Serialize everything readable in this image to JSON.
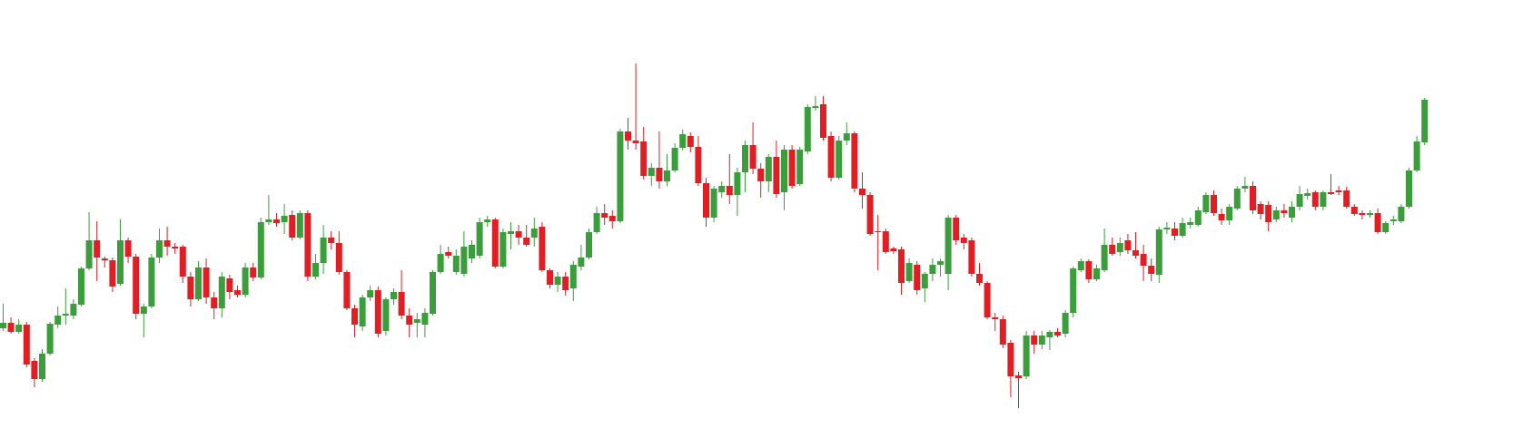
{
  "chart_data": {
    "type": "candlestick",
    "up_color": "#3a9e3a",
    "down_color": "#e01e24",
    "ylim": [
      0,
      483
    ],
    "ohlc": [
      [
        121,
        148,
        118,
        127
      ],
      [
        127,
        133,
        115,
        117
      ],
      [
        117,
        131,
        115,
        125
      ],
      [
        125,
        128,
        78,
        81
      ],
      [
        85,
        88,
        56,
        65
      ],
      [
        65,
        98,
        62,
        93
      ],
      [
        93,
        128,
        91,
        126
      ],
      [
        125,
        145,
        121,
        135
      ],
      [
        135,
        165,
        125,
        137
      ],
      [
        135,
        153,
        131,
        148
      ],
      [
        147,
        189,
        145,
        187
      ],
      [
        187,
        249,
        185,
        218
      ],
      [
        218,
        239,
        173,
        199
      ],
      [
        198,
        200,
        188,
        196
      ],
      [
        196,
        199,
        161,
        167
      ],
      [
        170,
        241,
        168,
        218
      ],
      [
        218,
        221,
        193,
        200
      ],
      [
        200,
        203,
        131,
        137
      ],
      [
        137,
        148,
        111,
        145
      ],
      [
        145,
        203,
        143,
        199
      ],
      [
        199,
        231,
        193,
        218
      ],
      [
        218,
        233,
        201,
        211
      ],
      [
        211,
        215,
        203,
        209
      ],
      [
        211,
        213,
        171,
        178
      ],
      [
        178,
        183,
        145,
        153
      ],
      [
        153,
        195,
        151,
        188
      ],
      [
        188,
        198,
        148,
        155
      ],
      [
        155,
        161,
        131,
        143
      ],
      [
        143,
        183,
        133,
        178
      ],
      [
        176,
        180,
        153,
        161
      ],
      [
        163,
        168,
        155,
        158
      ],
      [
        158,
        193,
        155,
        188
      ],
      [
        188,
        193,
        173,
        177
      ],
      [
        177,
        243,
        175,
        238
      ],
      [
        238,
        268,
        235,
        241
      ],
      [
        241,
        248,
        233,
        237
      ],
      [
        238,
        258,
        225,
        245
      ],
      [
        246,
        251,
        218,
        221
      ],
      [
        221,
        251,
        219,
        248
      ],
      [
        248,
        251,
        173,
        178
      ],
      [
        178,
        203,
        175,
        193
      ],
      [
        193,
        235,
        181,
        221
      ],
      [
        221,
        228,
        208,
        215
      ],
      [
        215,
        228,
        180,
        183
      ],
      [
        183,
        185,
        141,
        143
      ],
      [
        143,
        147,
        111,
        125
      ],
      [
        123,
        158,
        118,
        155
      ],
      [
        155,
        168,
        151,
        163
      ],
      [
        163,
        167,
        111,
        115
      ],
      [
        118,
        155,
        113,
        153
      ],
      [
        153,
        165,
        147,
        161
      ],
      [
        161,
        185,
        131,
        135
      ],
      [
        135,
        143,
        111,
        125
      ],
      [
        127,
        138,
        111,
        131
      ],
      [
        125,
        143,
        111,
        138
      ],
      [
        137,
        185,
        135,
        183
      ],
      [
        183,
        213,
        181,
        203
      ],
      [
        205,
        211,
        198,
        201
      ],
      [
        183,
        208,
        180,
        201
      ],
      [
        181,
        228,
        178,
        211
      ],
      [
        198,
        218,
        193,
        213
      ],
      [
        201,
        243,
        198,
        238
      ],
      [
        238,
        245,
        233,
        241
      ],
      [
        241,
        243,
        187,
        189
      ],
      [
        189,
        231,
        187,
        227
      ],
      [
        225,
        238,
        208,
        228
      ],
      [
        228,
        235,
        213,
        221
      ],
      [
        221,
        235,
        211,
        213
      ],
      [
        221,
        243,
        211,
        231
      ],
      [
        233,
        238,
        183,
        185
      ],
      [
        185,
        187,
        165,
        169
      ],
      [
        169,
        183,
        161,
        178
      ],
      [
        178,
        183,
        157,
        163
      ],
      [
        165,
        195,
        151,
        191
      ],
      [
        189,
        213,
        185,
        199
      ],
      [
        199,
        231,
        197,
        227
      ],
      [
        227,
        255,
        225,
        248
      ],
      [
        248,
        258,
        235,
        243
      ],
      [
        245,
        251,
        231,
        239
      ],
      [
        239,
        341,
        237,
        338
      ],
      [
        338,
        353,
        318,
        328
      ],
      [
        328,
        413,
        318,
        325
      ],
      [
        327,
        343,
        285,
        289
      ],
      [
        289,
        303,
        278,
        298
      ],
      [
        298,
        338,
        275,
        283
      ],
      [
        283,
        313,
        278,
        295
      ],
      [
        295,
        325,
        293,
        320
      ],
      [
        320,
        340,
        317,
        335
      ],
      [
        333,
        337,
        315,
        321
      ],
      [
        321,
        333,
        278,
        281
      ],
      [
        281,
        287,
        233,
        243
      ],
      [
        243,
        278,
        238,
        275
      ],
      [
        271,
        283,
        265,
        278
      ],
      [
        278,
        313,
        258,
        268
      ],
      [
        268,
        298,
        245,
        293
      ],
      [
        293,
        328,
        271,
        323
      ],
      [
        323,
        348,
        291,
        297
      ],
      [
        297,
        303,
        265,
        283
      ],
      [
        283,
        313,
        271,
        310
      ],
      [
        310,
        328,
        265,
        269
      ],
      [
        271,
        323,
        251,
        318
      ],
      [
        318,
        323,
        275,
        278
      ],
      [
        280,
        321,
        278,
        318
      ],
      [
        316,
        368,
        313,
        365
      ],
      [
        364,
        377,
        361,
        366
      ],
      [
        368,
        377,
        328,
        331
      ],
      [
        333,
        338,
        283,
        287
      ],
      [
        287,
        333,
        285,
        328
      ],
      [
        328,
        348,
        323,
        336
      ],
      [
        336,
        338,
        271,
        275
      ],
      [
        275,
        293,
        253,
        268
      ],
      [
        268,
        271,
        223,
        225
      ],
      [
        228,
        246,
        185,
        227
      ],
      [
        228,
        231,
        203,
        205
      ],
      [
        209,
        211,
        203,
        206
      ],
      [
        208,
        211,
        158,
        171
      ],
      [
        173,
        198,
        171,
        193
      ],
      [
        191,
        195,
        158,
        163
      ],
      [
        165,
        183,
        150,
        181
      ],
      [
        181,
        198,
        173,
        191
      ],
      [
        191,
        198,
        178,
        195
      ],
      [
        181,
        246,
        163,
        243
      ],
      [
        243,
        246,
        213,
        218
      ],
      [
        221,
        225,
        208,
        215
      ],
      [
        218,
        221,
        178,
        181
      ],
      [
        181,
        193,
        168,
        171
      ],
      [
        171,
        173,
        131,
        133
      ],
      [
        133,
        138,
        118,
        131
      ],
      [
        131,
        135,
        99,
        103
      ],
      [
        105,
        108,
        45,
        68
      ],
      [
        69,
        73,
        33,
        66
      ],
      [
        68,
        118,
        65,
        113
      ],
      [
        113,
        118,
        93,
        103
      ],
      [
        103,
        118,
        98,
        113
      ],
      [
        111,
        119,
        97,
        117
      ],
      [
        117,
        121,
        111,
        113
      ],
      [
        115,
        141,
        111,
        138
      ],
      [
        138,
        189,
        133,
        187
      ],
      [
        185,
        198,
        183,
        195
      ],
      [
        195,
        197,
        171,
        175
      ],
      [
        175,
        191,
        173,
        187
      ],
      [
        185,
        231,
        183,
        213
      ],
      [
        213,
        221,
        201,
        203
      ],
      [
        205,
        221,
        201,
        215
      ],
      [
        218,
        225,
        203,
        207
      ],
      [
        207,
        227,
        198,
        201
      ],
      [
        203,
        213,
        173,
        190
      ],
      [
        190,
        198,
        173,
        181
      ],
      [
        180,
        233,
        171,
        230
      ],
      [
        230,
        238,
        225,
        232
      ],
      [
        231,
        238,
        218,
        223
      ],
      [
        223,
        243,
        221,
        237
      ],
      [
        235,
        243,
        231,
        238
      ],
      [
        235,
        255,
        233,
        251
      ],
      [
        249,
        271,
        247,
        268
      ],
      [
        268,
        273,
        245,
        248
      ],
      [
        247,
        253,
        235,
        240
      ],
      [
        240,
        258,
        235,
        255
      ],
      [
        253,
        278,
        251,
        275
      ],
      [
        275,
        288,
        271,
        278
      ],
      [
        278,
        283,
        247,
        251
      ],
      [
        258,
        261,
        241,
        247
      ],
      [
        257,
        261,
        228,
        238
      ],
      [
        241,
        255,
        238,
        251
      ],
      [
        251,
        258,
        243,
        248
      ],
      [
        243,
        261,
        238,
        255
      ],
      [
        255,
        278,
        251,
        269
      ],
      [
        267,
        275,
        263,
        270
      ],
      [
        271,
        273,
        251,
        255
      ],
      [
        255,
        273,
        251,
        271
      ],
      [
        271,
        291,
        268,
        269
      ],
      [
        273,
        278,
        268,
        271
      ],
      [
        273,
        277,
        253,
        255
      ],
      [
        255,
        258,
        245,
        247
      ],
      [
        248,
        251,
        241,
        246
      ],
      [
        246,
        251,
        243,
        248
      ],
      [
        248,
        253,
        225,
        227
      ],
      [
        227,
        239,
        225,
        237
      ],
      [
        239,
        245,
        235,
        241
      ],
      [
        239,
        258,
        237,
        255
      ],
      [
        255,
        298,
        253,
        295
      ],
      [
        295,
        333,
        293,
        327
      ],
      [
        326,
        375,
        323,
        373
      ]
    ]
  }
}
